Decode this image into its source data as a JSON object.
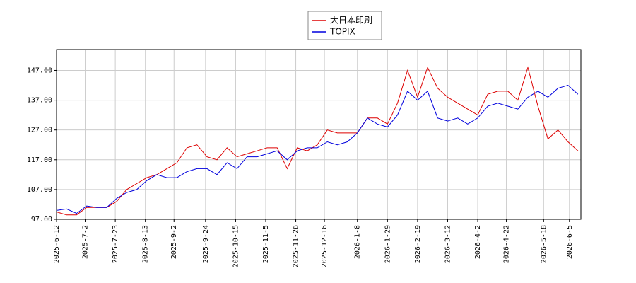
{
  "chart_data": {
    "type": "line",
    "x": [
      "2025-6-12",
      "2025-6-19",
      "2025-6-26",
      "2025-7-3",
      "2025-7-10",
      "2025-7-17",
      "2025-7-24",
      "2025-7-31",
      "2025-8-7",
      "2025-8-14",
      "2025-8-21",
      "2025-8-28",
      "2025-9-4",
      "2025-9-11",
      "2025-9-18",
      "2025-9-25",
      "2025-10-2",
      "2025-10-9",
      "2025-10-16",
      "2025-10-23",
      "2025-10-30",
      "2025-11-6",
      "2025-11-13",
      "2025-11-20",
      "2025-11-27",
      "2025-12-4",
      "2025-12-11",
      "2025-12-18",
      "2025-12-25",
      "2026-1-1",
      "2026-1-8",
      "2026-1-15",
      "2026-1-22",
      "2026-1-29",
      "2026-2-5",
      "2026-2-12",
      "2026-2-19",
      "2026-2-26",
      "2026-3-5",
      "2026-3-12",
      "2026-3-19",
      "2026-3-26",
      "2026-4-2",
      "2026-4-9",
      "2026-4-16",
      "2026-4-23",
      "2026-4-30",
      "2026-5-7",
      "2026-5-14",
      "2026-5-21",
      "2026-5-28",
      "2026-6-4",
      "2026-6-11"
    ],
    "series": [
      {
        "name": "大日本印刷",
        "color": "#dd0000",
        "values": [
          99.5,
          98.5,
          98.5,
          101,
          101,
          101,
          103,
          107,
          109,
          111,
          112,
          114,
          116,
          121,
          122,
          118,
          117,
          121,
          118,
          119,
          120,
          121,
          121,
          114,
          121,
          120,
          122,
          127,
          126,
          126,
          126,
          131,
          131,
          129,
          136,
          147,
          138,
          148,
          141,
          138,
          136,
          134,
          132,
          139,
          140,
          140,
          137,
          148,
          135,
          124,
          127,
          123,
          120
        ]
      },
      {
        "name": "TOPIX",
        "color": "#0000dd",
        "values": [
          100,
          100.5,
          99,
          101.5,
          101,
          101,
          104,
          106,
          107,
          110,
          112,
          111,
          111,
          113,
          114,
          114,
          112,
          116,
          114,
          118,
          118,
          119,
          120,
          117,
          120,
          121,
          121,
          123,
          122,
          123,
          126,
          131,
          129,
          128,
          132,
          140,
          137,
          140,
          131,
          130,
          131,
          129,
          131,
          135,
          136,
          135,
          134,
          138,
          140,
          138,
          141,
          142,
          139
        ]
      }
    ],
    "xlim": [
      "2025-6-12",
      "2026-6-13"
    ],
    "xticks": [
      "2025-6-12",
      "2025-7-2",
      "2025-7-23",
      "2025-8-13",
      "2025-9-2",
      "2025-9-24",
      "2025-10-15",
      "2025-11-5",
      "2025-11-26",
      "2025-12-16",
      "2026-1-8",
      "2026-1-29",
      "2026-2-19",
      "2026-3-12",
      "2026-4-2",
      "2026-4-22",
      "2026-5-18",
      "2026-6-5"
    ],
    "ylim": [
      97,
      154
    ],
    "yticks": [
      {
        "value": 97,
        "label": "97.00"
      },
      {
        "value": 107,
        "label": "107.00"
      },
      {
        "value": 117,
        "label": "117.00"
      },
      {
        "value": 127,
        "label": "127.00"
      },
      {
        "value": 137,
        "label": "137.00"
      },
      {
        "value": 147,
        "label": "147.00"
      }
    ],
    "grid": true
  }
}
